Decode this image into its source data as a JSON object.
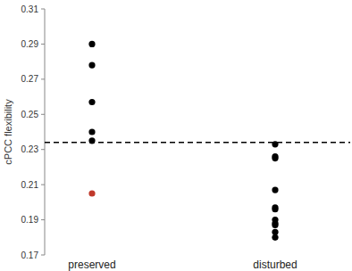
{
  "chart_data": {
    "type": "scatter",
    "y_label": "cPCC flexibility",
    "categories": [
      "preserved",
      "disturbed"
    ],
    "values": [
      [
        0.29,
        0.278,
        0.257,
        0.24,
        0.235,
        0.205
      ],
      [
        0.233,
        0.226,
        0.225,
        0.207,
        0.197,
        0.196,
        0.19,
        0.188,
        0.187,
        0.183,
        0.18
      ]
    ],
    "colors": [
      [
        "#000000",
        "#000000",
        "#000000",
        "#000000",
        "#000000",
        "#c0392b"
      ],
      [
        "#000000",
        "#000000",
        "#000000",
        "#000000",
        "#000000",
        "#000000",
        "#000000",
        "#000000",
        "#000000",
        "#000000",
        "#000000"
      ]
    ],
    "marker": "circle",
    "reference_line": 0.234,
    "line_style": "dashed",
    "ylim": [
      0.17,
      0.31
    ],
    "yticks": [
      0.17,
      0.19,
      0.21,
      0.23,
      0.25,
      0.27,
      0.29,
      0.31
    ],
    "grid": false
  }
}
